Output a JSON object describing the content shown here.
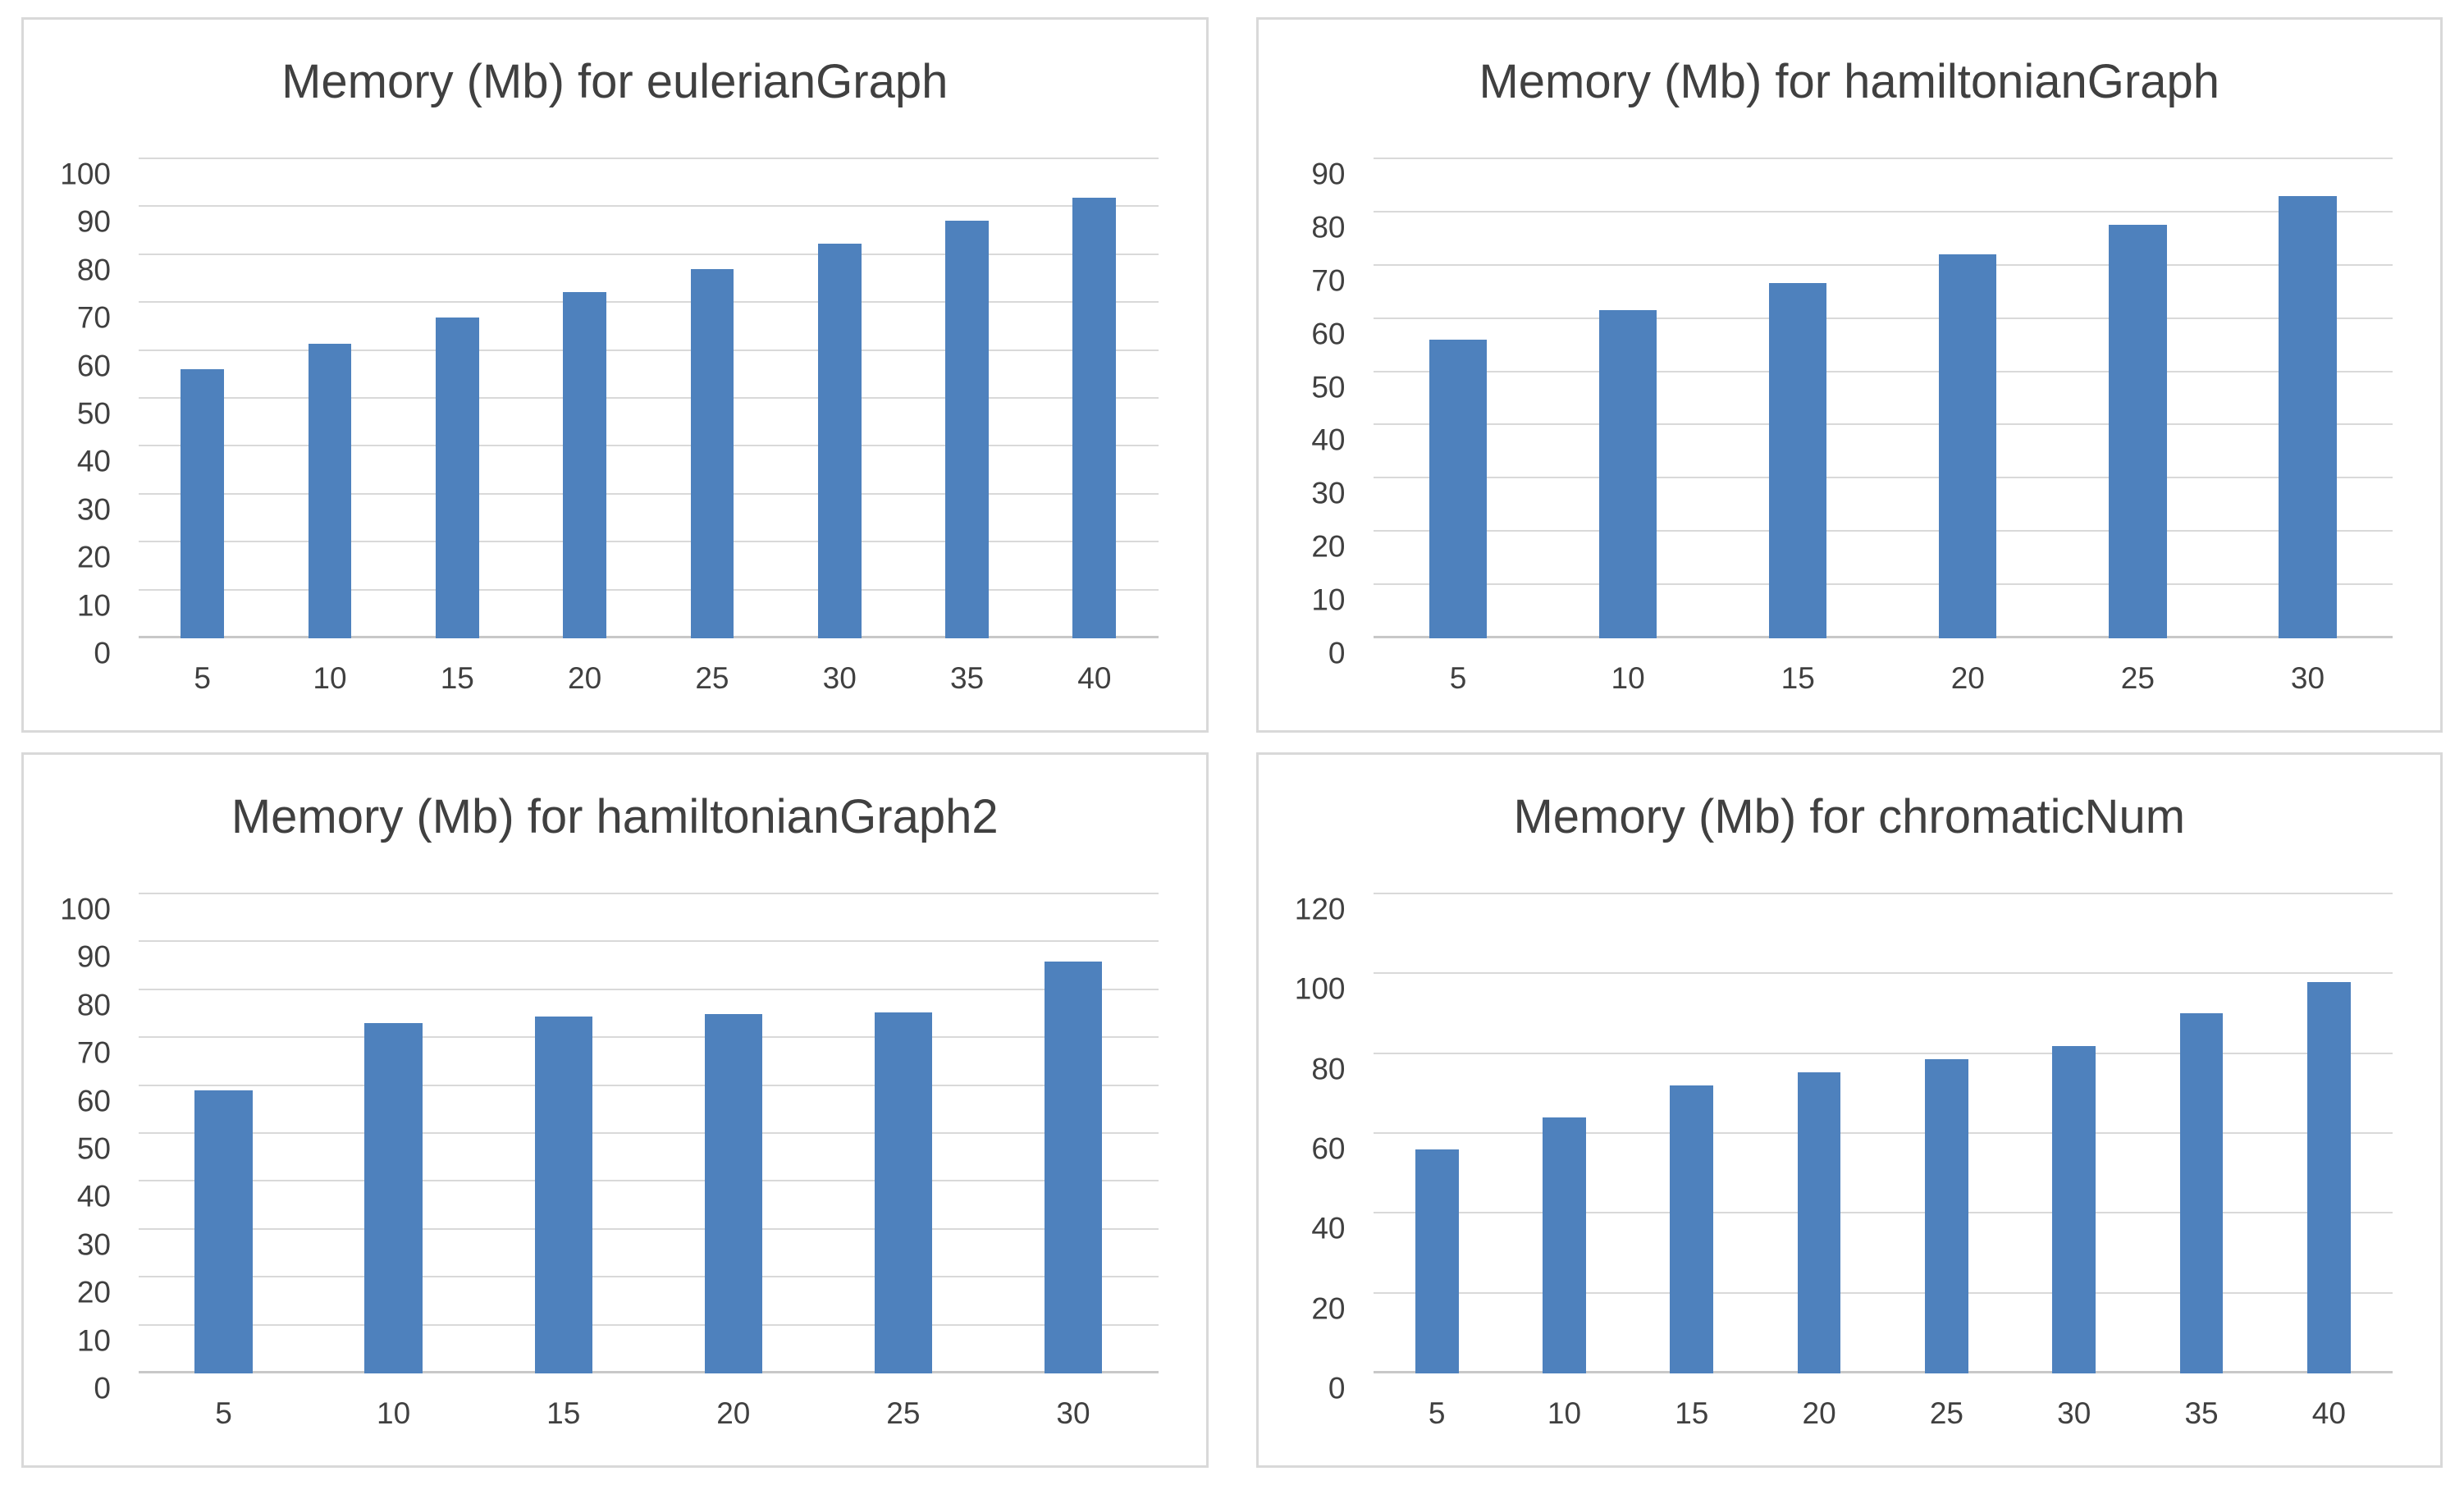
{
  "page": {
    "background": "#ffffff",
    "description": "2x2 grid of Excel-style bar charts of memory usage"
  },
  "colors": {
    "bar": "#4e81bd",
    "gridline": "#d9d9d9",
    "axis_line": "#c8c8c8",
    "text": "#404040",
    "panel_border": "#d9d9d9",
    "panel_background": "#ffffff"
  },
  "chart_data": [
    {
      "type": "bar",
      "title": "Memory (Mb) for eulerianGraph",
      "categories": [
        "5",
        "10",
        "15",
        "20",
        "25",
        "30",
        "35",
        "40"
      ],
      "values": [
        56.2,
        61.5,
        66.9,
        72.3,
        77.1,
        82.3,
        87.1,
        92.0
      ],
      "xlabel": "",
      "ylabel": "",
      "ylim": [
        0,
        100
      ],
      "yticks": [
        0,
        10,
        20,
        30,
        40,
        50,
        60,
        70,
        80,
        90,
        100
      ],
      "grid": true,
      "legend": "none",
      "bar_color": "#4e81bd"
    },
    {
      "type": "bar",
      "title": "Memory (Mb) for hamiltonianGraph",
      "categories": [
        "5",
        "10",
        "15",
        "20",
        "25",
        "30"
      ],
      "values": [
        56.1,
        61.6,
        66.8,
        72.1,
        77.6,
        83.1
      ],
      "xlabel": "",
      "ylabel": "",
      "ylim": [
        0,
        90
      ],
      "yticks": [
        0,
        10,
        20,
        30,
        40,
        50,
        60,
        70,
        80,
        90
      ],
      "grid": true,
      "legend": "none",
      "bar_color": "#4e81bd"
    },
    {
      "type": "bar",
      "title": "Memory (Mb) for hamiltonianGraph2",
      "categories": [
        "5",
        "10",
        "15",
        "20",
        "25",
        "30"
      ],
      "values": [
        59.1,
        73.1,
        74.5,
        75.0,
        75.3,
        85.9
      ],
      "xlabel": "",
      "ylabel": "",
      "ylim": [
        0,
        100
      ],
      "yticks": [
        0,
        10,
        20,
        30,
        40,
        50,
        60,
        70,
        80,
        90,
        100
      ],
      "grid": true,
      "legend": "none",
      "bar_color": "#4e81bd"
    },
    {
      "type": "bar",
      "title": "Memory (Mb) for chromaticNum",
      "categories": [
        "5",
        "10",
        "15",
        "20",
        "25",
        "30",
        "35",
        "40"
      ],
      "values": [
        56.0,
        64.2,
        72.2,
        75.5,
        78.7,
        82.0,
        90.2,
        98.0
      ],
      "xlabel": "",
      "ylabel": "",
      "ylim": [
        0,
        120
      ],
      "yticks": [
        0,
        20,
        40,
        60,
        80,
        100,
        120
      ],
      "grid": true,
      "legend": "none",
      "bar_color": "#4e81bd"
    }
  ]
}
